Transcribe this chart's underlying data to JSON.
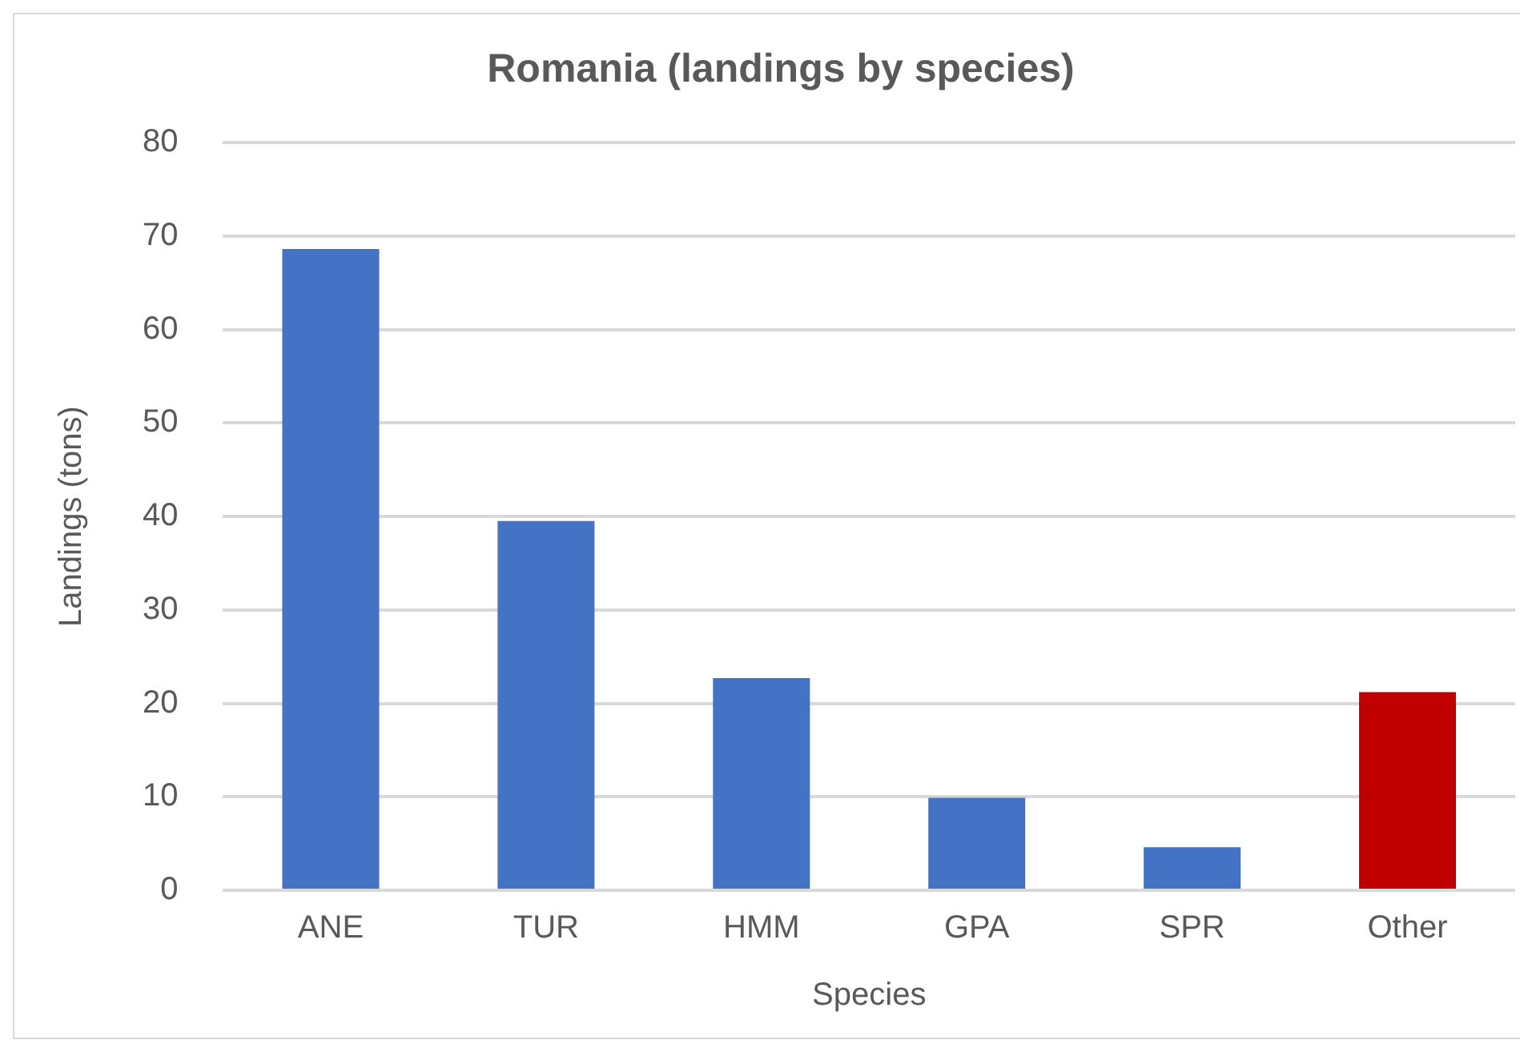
{
  "chart_data": {
    "type": "bar",
    "title": "Romania (landings by species)",
    "xlabel": "Species",
    "ylabel": "Landings (tons)",
    "categories": [
      "ANE",
      "TUR",
      "HMM",
      "GPA",
      "SPR",
      "Other"
    ],
    "values": [
      68.6,
      39.5,
      22.7,
      9.9,
      4.6,
      21.2
    ],
    "colors": [
      "#4472c4",
      "#4472c4",
      "#4472c4",
      "#4472c4",
      "#4472c4",
      "#c00000"
    ],
    "ylim": [
      0,
      80
    ],
    "yticks": [
      0,
      10,
      20,
      30,
      40,
      50,
      60,
      70,
      80
    ],
    "grid": "y",
    "legend": false
  }
}
